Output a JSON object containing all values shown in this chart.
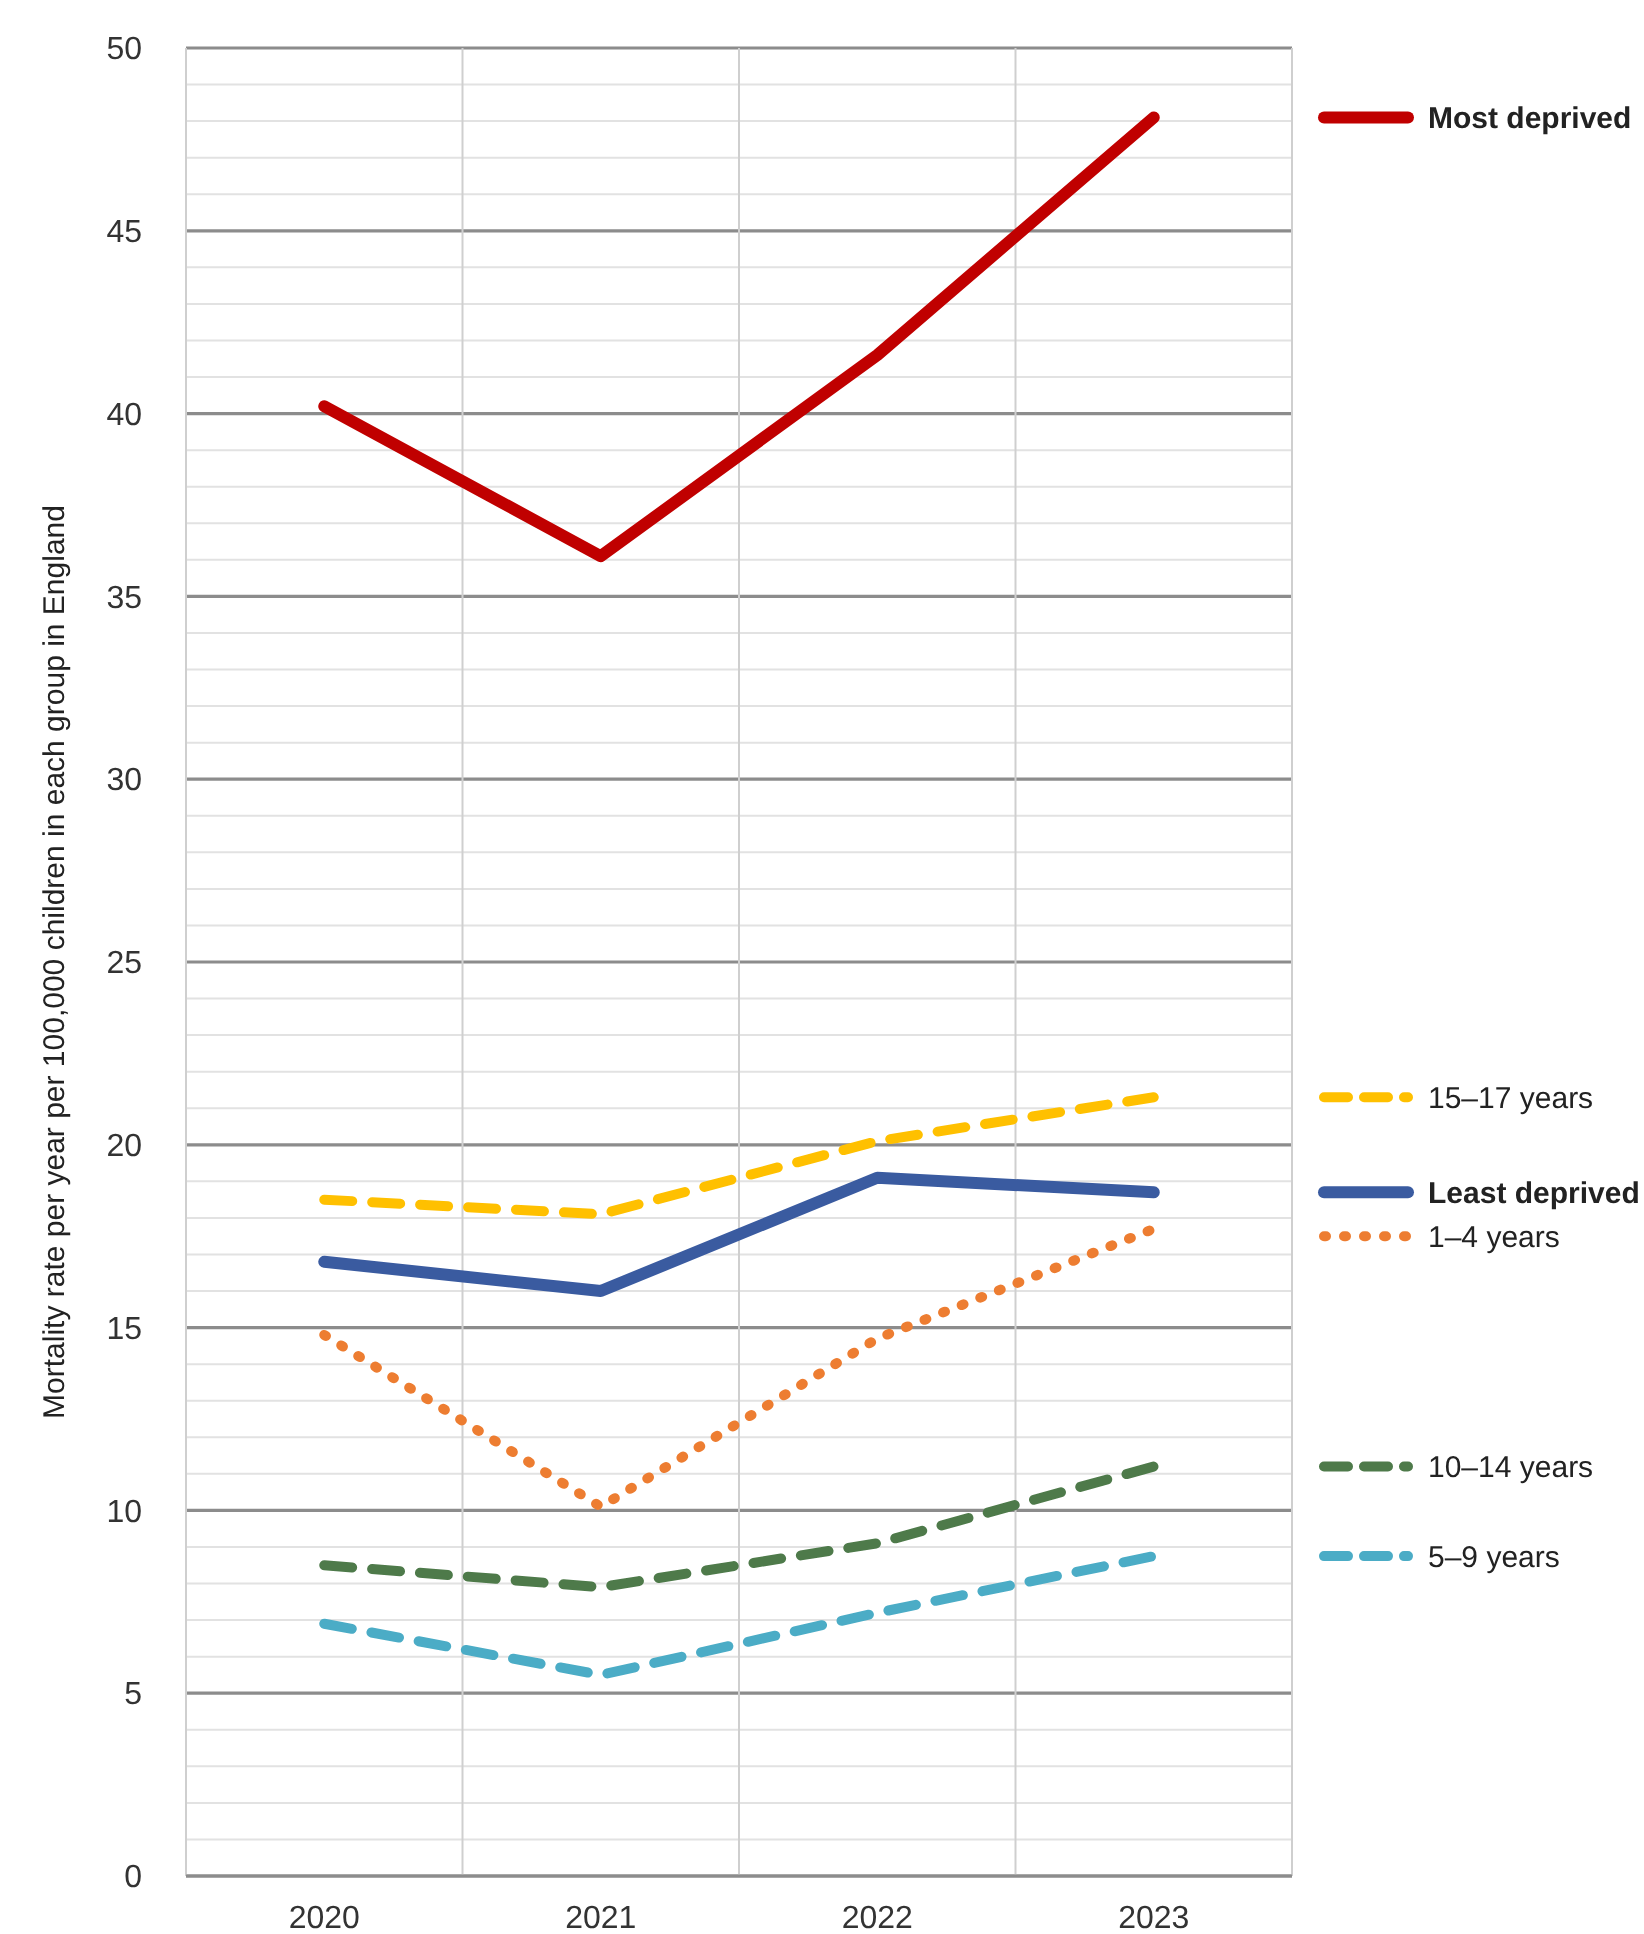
{
  "chart_data": {
    "type": "line",
    "ylabel": "Mortality rate per year per 100,000 children in each group in England",
    "categories": [
      "2020",
      "2021",
      "2022",
      "2023"
    ],
    "ylim": [
      0,
      50
    ],
    "yticks": [
      0,
      {
        "value": 1,
        "label": null
      },
      {
        "value": 2,
        "label": null
      },
      {
        "value": 3,
        "label": null
      },
      {
        "value": 4,
        "label": null
      },
      5,
      {
        "value": 6,
        "label": null
      },
      {
        "value": 7,
        "label": null
      },
      {
        "value": 8,
        "label": null
      },
      {
        "value": 9,
        "label": null
      },
      10,
      {
        "value": 11,
        "label": null
      },
      {
        "value": 12,
        "label": null
      },
      {
        "value": 13,
        "label": null
      },
      {
        "value": 14,
        "label": null
      },
      15,
      {
        "value": 16,
        "label": null
      },
      {
        "value": 17,
        "label": null
      },
      {
        "value": 18,
        "label": null
      },
      {
        "value": 19,
        "label": null
      },
      20,
      {
        "value": 21,
        "label": null
      },
      {
        "value": 22,
        "label": null
      },
      {
        "value": 23,
        "label": null
      },
      {
        "value": 24,
        "label": null
      },
      25,
      {
        "value": 26,
        "label": null
      },
      {
        "value": 27,
        "label": null
      },
      {
        "value": 28,
        "label": null
      },
      {
        "value": 29,
        "label": null
      },
      30,
      {
        "value": 31,
        "label": null
      },
      {
        "value": 32,
        "label": null
      },
      {
        "value": 33,
        "label": null
      },
      {
        "value": 34,
        "label": null
      },
      35,
      {
        "value": 36,
        "label": null
      },
      {
        "value": 37,
        "label": null
      },
      {
        "value": 38,
        "label": null
      },
      {
        "value": 39,
        "label": null
      },
      40,
      {
        "value": 41,
        "label": null
      },
      {
        "value": 42,
        "label": null
      },
      {
        "value": 43,
        "label": null
      },
      {
        "value": 44,
        "label": null
      },
      45,
      {
        "value": 46,
        "label": null
      },
      {
        "value": 47,
        "label": null
      },
      {
        "value": 48,
        "label": null
      },
      {
        "value": 49,
        "label": null
      },
      50
    ],
    "grid": true,
    "legend": "right",
    "marker": "none",
    "series": [
      {
        "name": "Most deprived",
        "color": "#c00000",
        "line_style": "solid",
        "values": [
          40.2,
          36.1,
          41.6,
          48.1
        ]
      },
      {
        "name": "15–17 years",
        "color": "#ffc000",
        "line_style": "dashed",
        "values": [
          18.5,
          18.1,
          20.1,
          21.3
        ]
      },
      {
        "name": "Least deprived",
        "color": "#3a5ba0",
        "line_style": "solid",
        "values": [
          16.8,
          16.0,
          19.1,
          18.7
        ]
      },
      {
        "name": "1–4 years",
        "color": "#ed7d31",
        "line_style": "dotted",
        "values": [
          14.8,
          10.1,
          14.7,
          17.7
        ]
      },
      {
        "name": "10–14 years",
        "color": "#4e7a4a",
        "line_style": "dashed",
        "values": [
          8.5,
          7.9,
          9.1,
          11.2
        ]
      },
      {
        "name": "5–9 years",
        "color": "#4bacc6",
        "line_style": "dashed",
        "values": [
          6.9,
          5.5,
          7.2,
          8.75
        ]
      }
    ]
  }
}
